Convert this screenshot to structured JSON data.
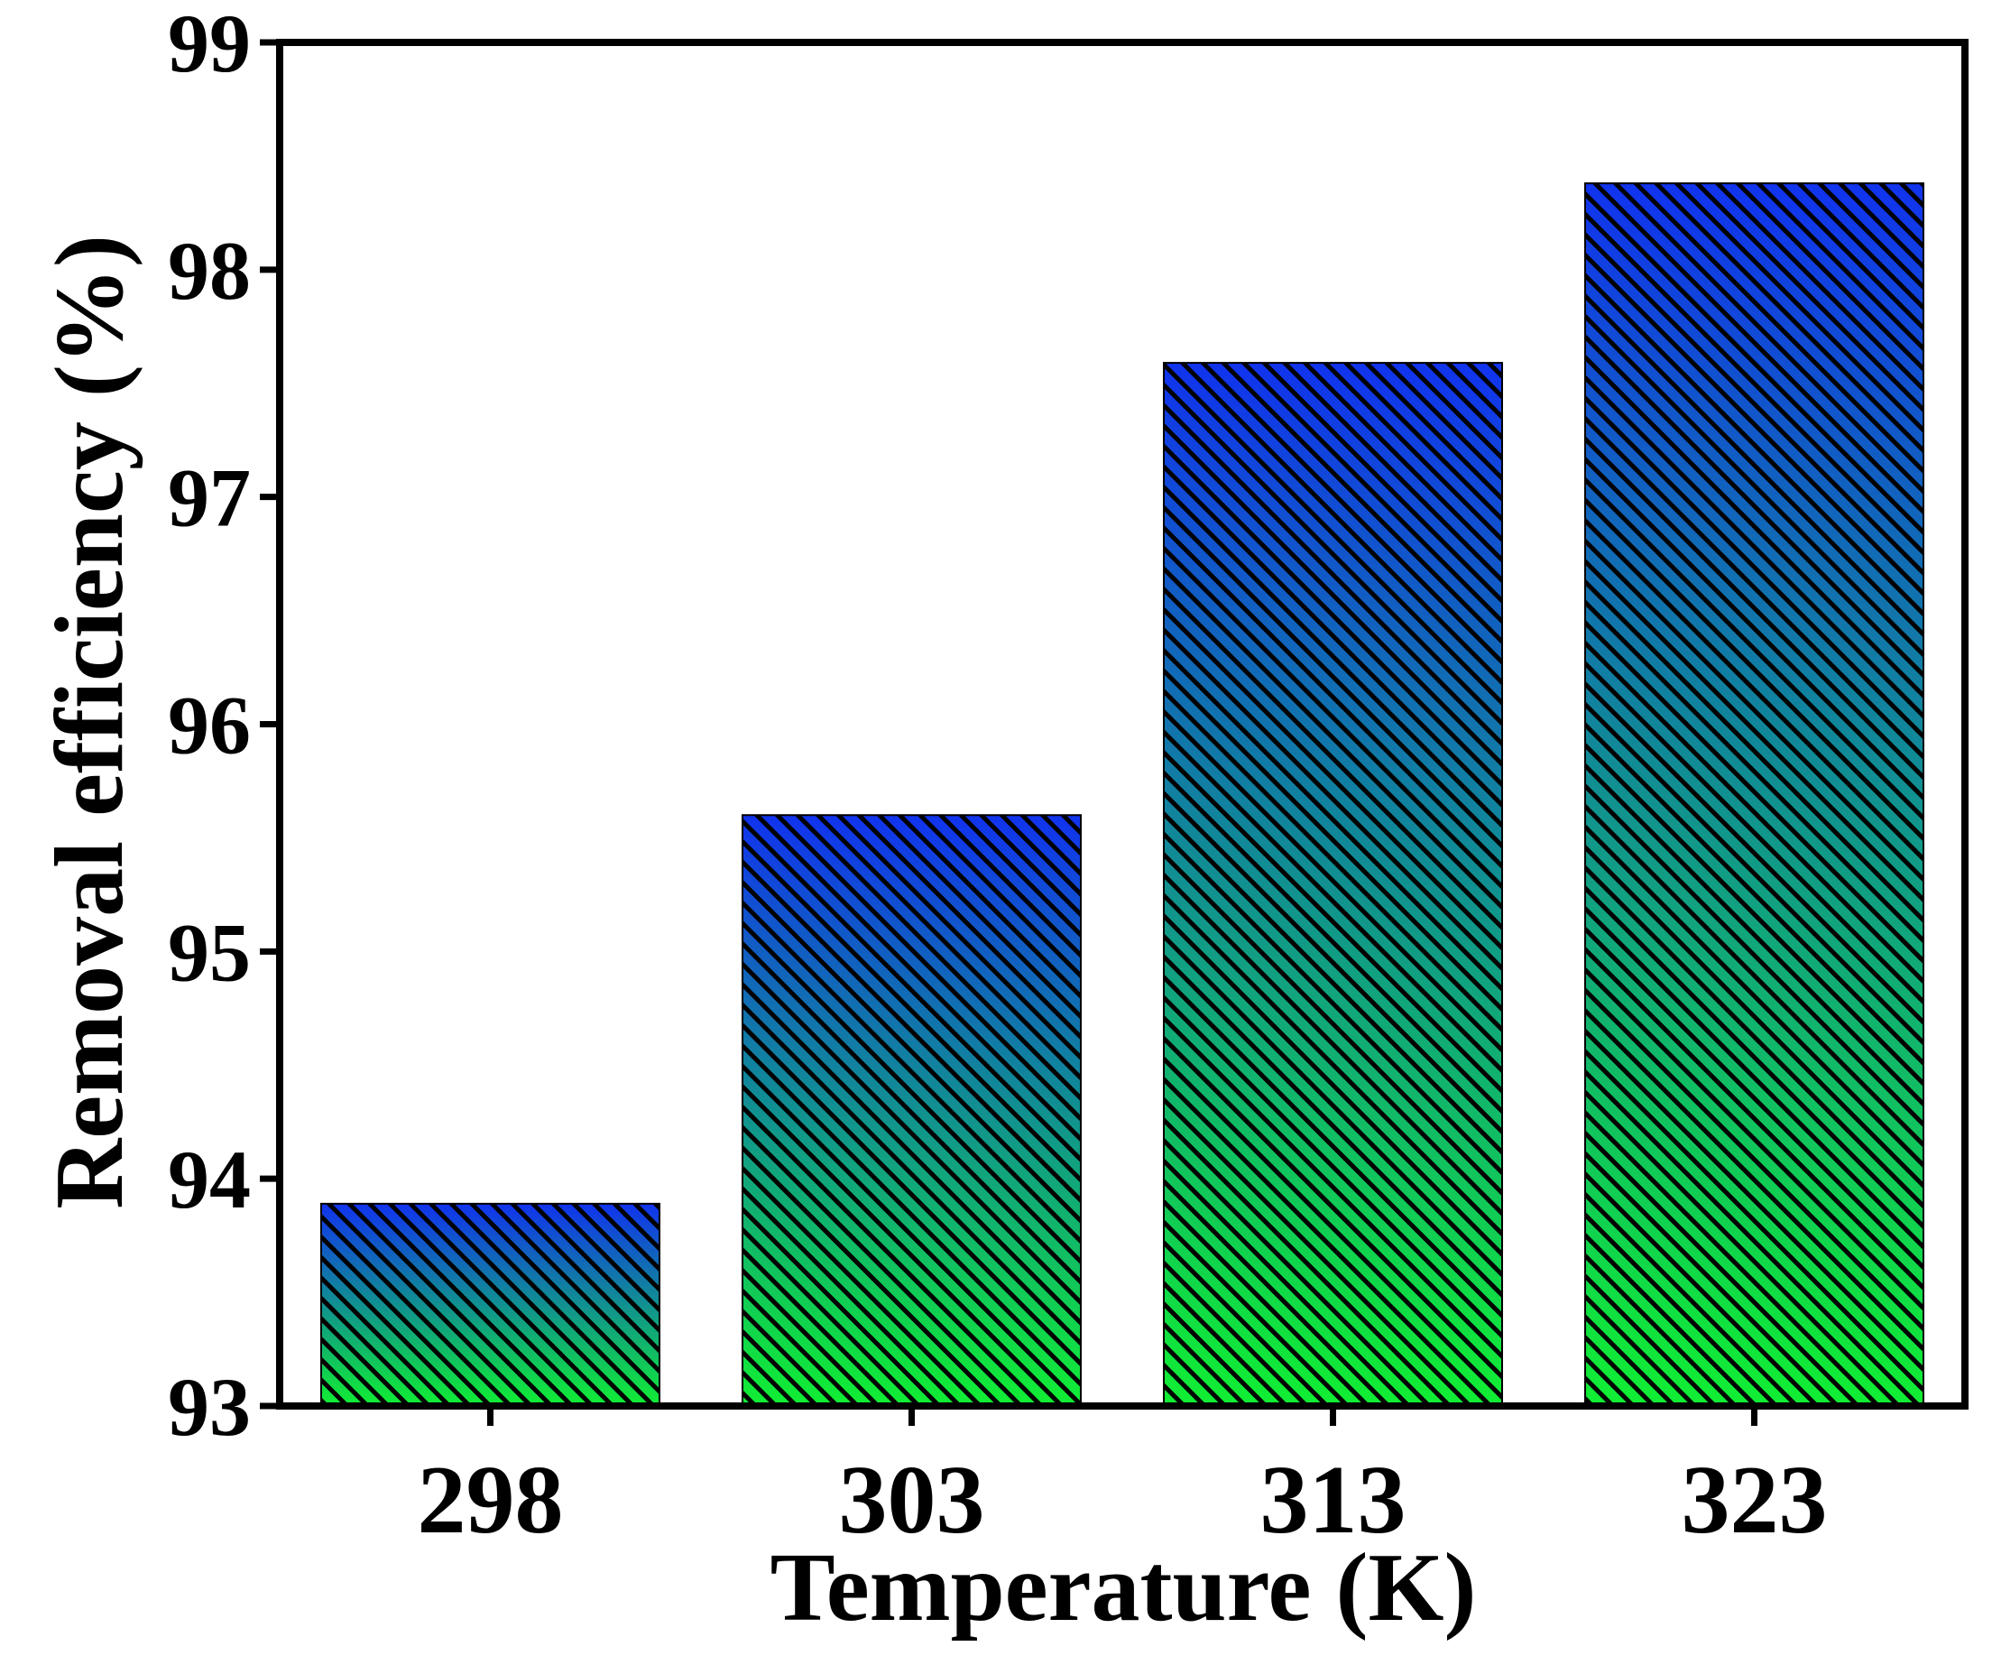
{
  "chart_data": {
    "type": "bar",
    "categories": [
      "298",
      "303",
      "313",
      "323"
    ],
    "values": [
      93.89,
      95.6,
      97.59,
      98.38
    ],
    "xlabel": "Temperature (K)",
    "ylabel": "Removal efficiency (%)",
    "ylim": [
      93,
      99
    ],
    "yticks": [
      "93",
      "94",
      "95",
      "96",
      "97",
      "98",
      "99"
    ],
    "grid": false,
    "legend": "none",
    "bar_fill": "vertical gradient from blue (top) to green (bottom) with diagonal black hatching",
    "colors": {
      "gradient_top": "#1133ee",
      "gradient_bottom": "#11ee33",
      "hatch": "#000000",
      "axis": "#000000",
      "background": "#ffffff"
    }
  }
}
